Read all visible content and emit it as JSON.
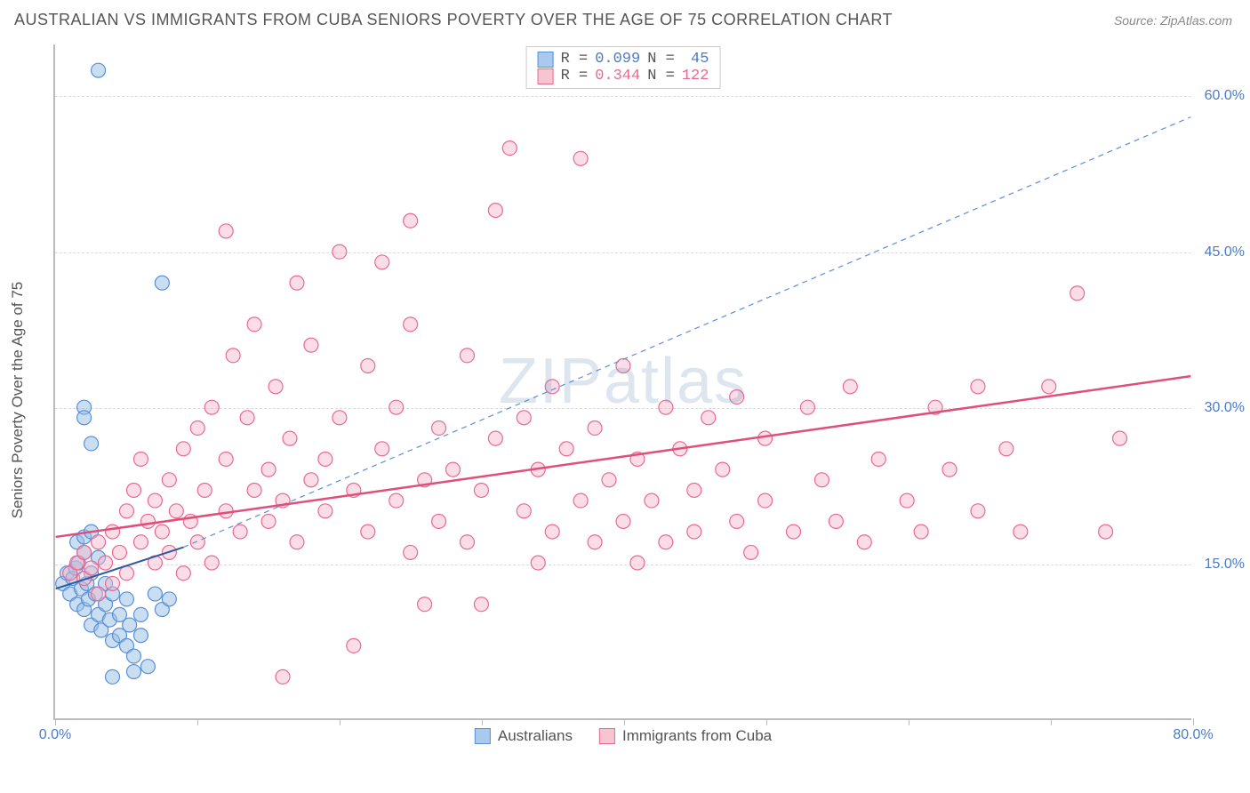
{
  "title": "AUSTRALIAN VS IMMIGRANTS FROM CUBA SENIORS POVERTY OVER THE AGE OF 75 CORRELATION CHART",
  "source": "Source: ZipAtlas.com",
  "y_axis_label": "Seniors Poverty Over the Age of 75",
  "watermark": "ZIPatlas",
  "legend_top": {
    "rows": [
      {
        "swatch_fill": "#a9c9ee",
        "swatch_border": "#5b8fd6",
        "r_label": "R =",
        "r_val": "0.099",
        "n_label": "N =",
        "n_val": "45",
        "color": "#4a7bc8"
      },
      {
        "swatch_fill": "#f7c4d2",
        "swatch_border": "#e86a92",
        "r_label": "R =",
        "r_val": "0.344",
        "n_label": "N =",
        "n_val": "122",
        "color": "#e86a92"
      }
    ]
  },
  "legend_bottom": [
    {
      "swatch_fill": "#a9c9ee",
      "swatch_border": "#5b8fd6",
      "label": "Australians"
    },
    {
      "swatch_fill": "#f7c4d2",
      "swatch_border": "#e86a92",
      "label": "Immigrants from Cuba"
    }
  ],
  "chart": {
    "type": "scatter",
    "xlim": [
      0,
      80
    ],
    "ylim": [
      0,
      65
    ],
    "x_ticks": [
      0,
      10,
      20,
      30,
      40,
      50,
      60,
      70,
      80
    ],
    "x_tick_labels": {
      "0": "0.0%",
      "80": "80.0%"
    },
    "y_grid": [
      15,
      30,
      45,
      60
    ],
    "y_tick_labels": {
      "15": "15.0%",
      "30": "30.0%",
      "45": "45.0%",
      "60": "60.0%"
    },
    "grid_color": "#dddddd",
    "axis_color": "#bbbbbb",
    "marker_radius": 8,
    "series": [
      {
        "name": "Australians",
        "fill": "rgba(150,190,230,0.5)",
        "stroke": "#5b8fd6",
        "trend_solid": {
          "x1": 0,
          "y1": 12.5,
          "x2": 9,
          "y2": 16.5,
          "color": "#2c5aa0",
          "width": 2
        },
        "trend_dash": {
          "x1": 9,
          "y1": 16.5,
          "x2": 80,
          "y2": 58,
          "color": "#5b8fd6",
          "width": 1.2
        },
        "points": [
          [
            0.5,
            13
          ],
          [
            0.8,
            14
          ],
          [
            1,
            12
          ],
          [
            1.2,
            13.5
          ],
          [
            1.4,
            14.5
          ],
          [
            1.5,
            11
          ],
          [
            1.6,
            15
          ],
          [
            1.8,
            12.5
          ],
          [
            2,
            16
          ],
          [
            2,
            10.5
          ],
          [
            2.2,
            13
          ],
          [
            2.3,
            11.5
          ],
          [
            2.5,
            14
          ],
          [
            2.5,
            9
          ],
          [
            2.8,
            12
          ],
          [
            3,
            10
          ],
          [
            3,
            15.5
          ],
          [
            3.2,
            8.5
          ],
          [
            3.5,
            11
          ],
          [
            3.5,
            13
          ],
          [
            3.8,
            9.5
          ],
          [
            4,
            7.5
          ],
          [
            4,
            12
          ],
          [
            4.5,
            10
          ],
          [
            4.5,
            8
          ],
          [
            5,
            11.5
          ],
          [
            5,
            7
          ],
          [
            5.2,
            9
          ],
          [
            5.5,
            6
          ],
          [
            6,
            8
          ],
          [
            6,
            10
          ],
          [
            6.5,
            5
          ],
          [
            7,
            12
          ],
          [
            7.5,
            10.5
          ],
          [
            8,
            11.5
          ],
          [
            4,
            4
          ],
          [
            2,
            30
          ],
          [
            2,
            29
          ],
          [
            2.5,
            26.5
          ],
          [
            3,
            62.5
          ],
          [
            5.5,
            4.5
          ],
          [
            7.5,
            42
          ],
          [
            1.5,
            17
          ],
          [
            2,
            17.5
          ],
          [
            2.5,
            18
          ]
        ]
      },
      {
        "name": "Immigrants from Cuba",
        "fill": "rgba(245,180,200,0.45)",
        "stroke": "#e86a92",
        "trend_solid": {
          "x1": 0,
          "y1": 17.5,
          "x2": 80,
          "y2": 33,
          "color": "#e04e7a",
          "width": 2.5
        },
        "trend_dash": null,
        "points": [
          [
            1,
            14
          ],
          [
            1.5,
            15
          ],
          [
            2,
            13.5
          ],
          [
            2,
            16
          ],
          [
            2.5,
            14.5
          ],
          [
            3,
            17
          ],
          [
            3,
            12
          ],
          [
            3.5,
            15
          ],
          [
            4,
            18
          ],
          [
            4,
            13
          ],
          [
            4.5,
            16
          ],
          [
            5,
            20
          ],
          [
            5,
            14
          ],
          [
            5.5,
            22
          ],
          [
            6,
            17
          ],
          [
            6,
            25
          ],
          [
            6.5,
            19
          ],
          [
            7,
            15
          ],
          [
            7,
            21
          ],
          [
            7.5,
            18
          ],
          [
            8,
            23
          ],
          [
            8,
            16
          ],
          [
            8.5,
            20
          ],
          [
            9,
            26
          ],
          [
            9,
            14
          ],
          [
            9.5,
            19
          ],
          [
            10,
            28
          ],
          [
            10,
            17
          ],
          [
            10.5,
            22
          ],
          [
            11,
            30
          ],
          [
            11,
            15
          ],
          [
            12,
            25
          ],
          [
            12,
            20
          ],
          [
            12.5,
            35
          ],
          [
            13,
            18
          ],
          [
            13.5,
            29
          ],
          [
            14,
            22
          ],
          [
            14,
            38
          ],
          [
            15,
            24
          ],
          [
            15,
            19
          ],
          [
            15.5,
            32
          ],
          [
            16,
            21
          ],
          [
            16.5,
            27
          ],
          [
            17,
            42
          ],
          [
            17,
            17
          ],
          [
            18,
            23
          ],
          [
            18,
            36
          ],
          [
            19,
            25
          ],
          [
            19,
            20
          ],
          [
            20,
            29
          ],
          [
            20,
            45
          ],
          [
            21,
            7
          ],
          [
            21,
            22
          ],
          [
            22,
            18
          ],
          [
            22,
            34
          ],
          [
            23,
            26
          ],
          [
            24,
            21
          ],
          [
            24,
            30
          ],
          [
            25,
            16
          ],
          [
            25,
            38
          ],
          [
            26,
            23
          ],
          [
            26,
            11
          ],
          [
            27,
            19
          ],
          [
            27,
            28
          ],
          [
            28,
            24
          ],
          [
            29,
            17
          ],
          [
            29,
            35
          ],
          [
            30,
            11
          ],
          [
            30,
            22
          ],
          [
            31,
            27
          ],
          [
            31,
            49
          ],
          [
            32,
            55
          ],
          [
            33,
            20
          ],
          [
            33,
            29
          ],
          [
            34,
            15
          ],
          [
            34,
            24
          ],
          [
            35,
            18
          ],
          [
            35,
            32
          ],
          [
            36,
            26
          ],
          [
            37,
            21
          ],
          [
            37,
            54
          ],
          [
            38,
            17
          ],
          [
            38,
            28
          ],
          [
            39,
            23
          ],
          [
            40,
            19
          ],
          [
            40,
            34
          ],
          [
            41,
            25
          ],
          [
            41,
            15
          ],
          [
            42,
            21
          ],
          [
            43,
            30
          ],
          [
            43,
            17
          ],
          [
            44,
            26
          ],
          [
            45,
            22
          ],
          [
            45,
            18
          ],
          [
            46,
            29
          ],
          [
            47,
            24
          ],
          [
            48,
            19
          ],
          [
            48,
            31
          ],
          [
            49,
            16
          ],
          [
            50,
            27
          ],
          [
            50,
            21
          ],
          [
            52,
            18
          ],
          [
            53,
            30
          ],
          [
            54,
            23
          ],
          [
            55,
            19
          ],
          [
            56,
            32
          ],
          [
            57,
            17
          ],
          [
            58,
            25
          ],
          [
            60,
            21
          ],
          [
            61,
            18
          ],
          [
            62,
            30
          ],
          [
            63,
            24
          ],
          [
            65,
            20
          ],
          [
            65,
            32
          ],
          [
            67,
            26
          ],
          [
            68,
            18
          ],
          [
            70,
            32
          ],
          [
            72,
            41
          ],
          [
            74,
            18
          ],
          [
            75,
            27
          ],
          [
            23,
            44
          ],
          [
            25,
            48
          ],
          [
            12,
            47
          ],
          [
            16,
            4
          ]
        ]
      }
    ]
  }
}
